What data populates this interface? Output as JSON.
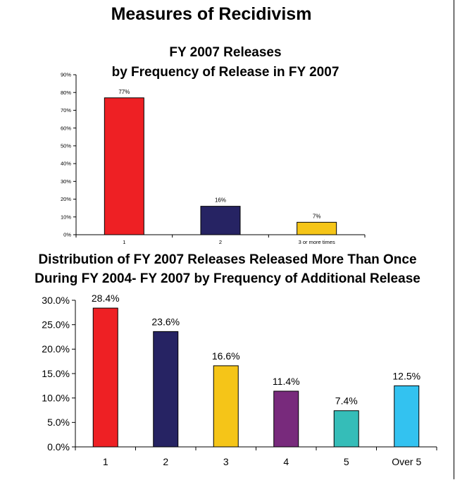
{
  "header": {
    "title": "Measures of Recidivism"
  },
  "chart_data": [
    {
      "type": "bar",
      "title_line1": "FY 2007 Releases",
      "title_line2": "by Frequency of Release in FY 2007",
      "categories": [
        "1",
        "2",
        "3 or more times"
      ],
      "values": [
        77,
        16,
        7
      ],
      "data_labels": [
        "77%",
        "16%",
        "7%"
      ],
      "colors": [
        "#ee2024",
        "#262363",
        "#f5c518"
      ],
      "ylim": [
        0,
        90
      ],
      "yticks": [
        0,
        10,
        20,
        30,
        40,
        50,
        60,
        70,
        80,
        90
      ],
      "ytick_labels": [
        "0%",
        "10%",
        "20%",
        "30%",
        "40%",
        "50%",
        "60%",
        "70%",
        "80%",
        "90%"
      ],
      "grid": false,
      "xlabel": "",
      "ylabel": ""
    },
    {
      "type": "bar",
      "title_line1": "Distribution of FY 2007 Releases Released More Than Once",
      "title_line2": "During FY 2004- FY 2007 by Frequency of Additional Release",
      "categories": [
        "1",
        "2",
        "3",
        "4",
        "5",
        "Over 5"
      ],
      "values": [
        28.4,
        23.6,
        16.6,
        11.4,
        7.4,
        12.5
      ],
      "data_labels": [
        "28.4%",
        "23.6%",
        "16.6%",
        "11.4%",
        "7.4%",
        "12.5%"
      ],
      "colors": [
        "#ee2024",
        "#262363",
        "#f5c518",
        "#782a7c",
        "#35bdb8",
        "#33c2f0"
      ],
      "ylim": [
        0,
        30
      ],
      "yticks": [
        0,
        5,
        10,
        15,
        20,
        25,
        30
      ],
      "ytick_labels": [
        "0.0%",
        "5.0%",
        "10.0%",
        "15.0%",
        "20.0%",
        "25.0%",
        "30.0%"
      ],
      "grid": false,
      "xlabel": "",
      "ylabel": ""
    }
  ]
}
